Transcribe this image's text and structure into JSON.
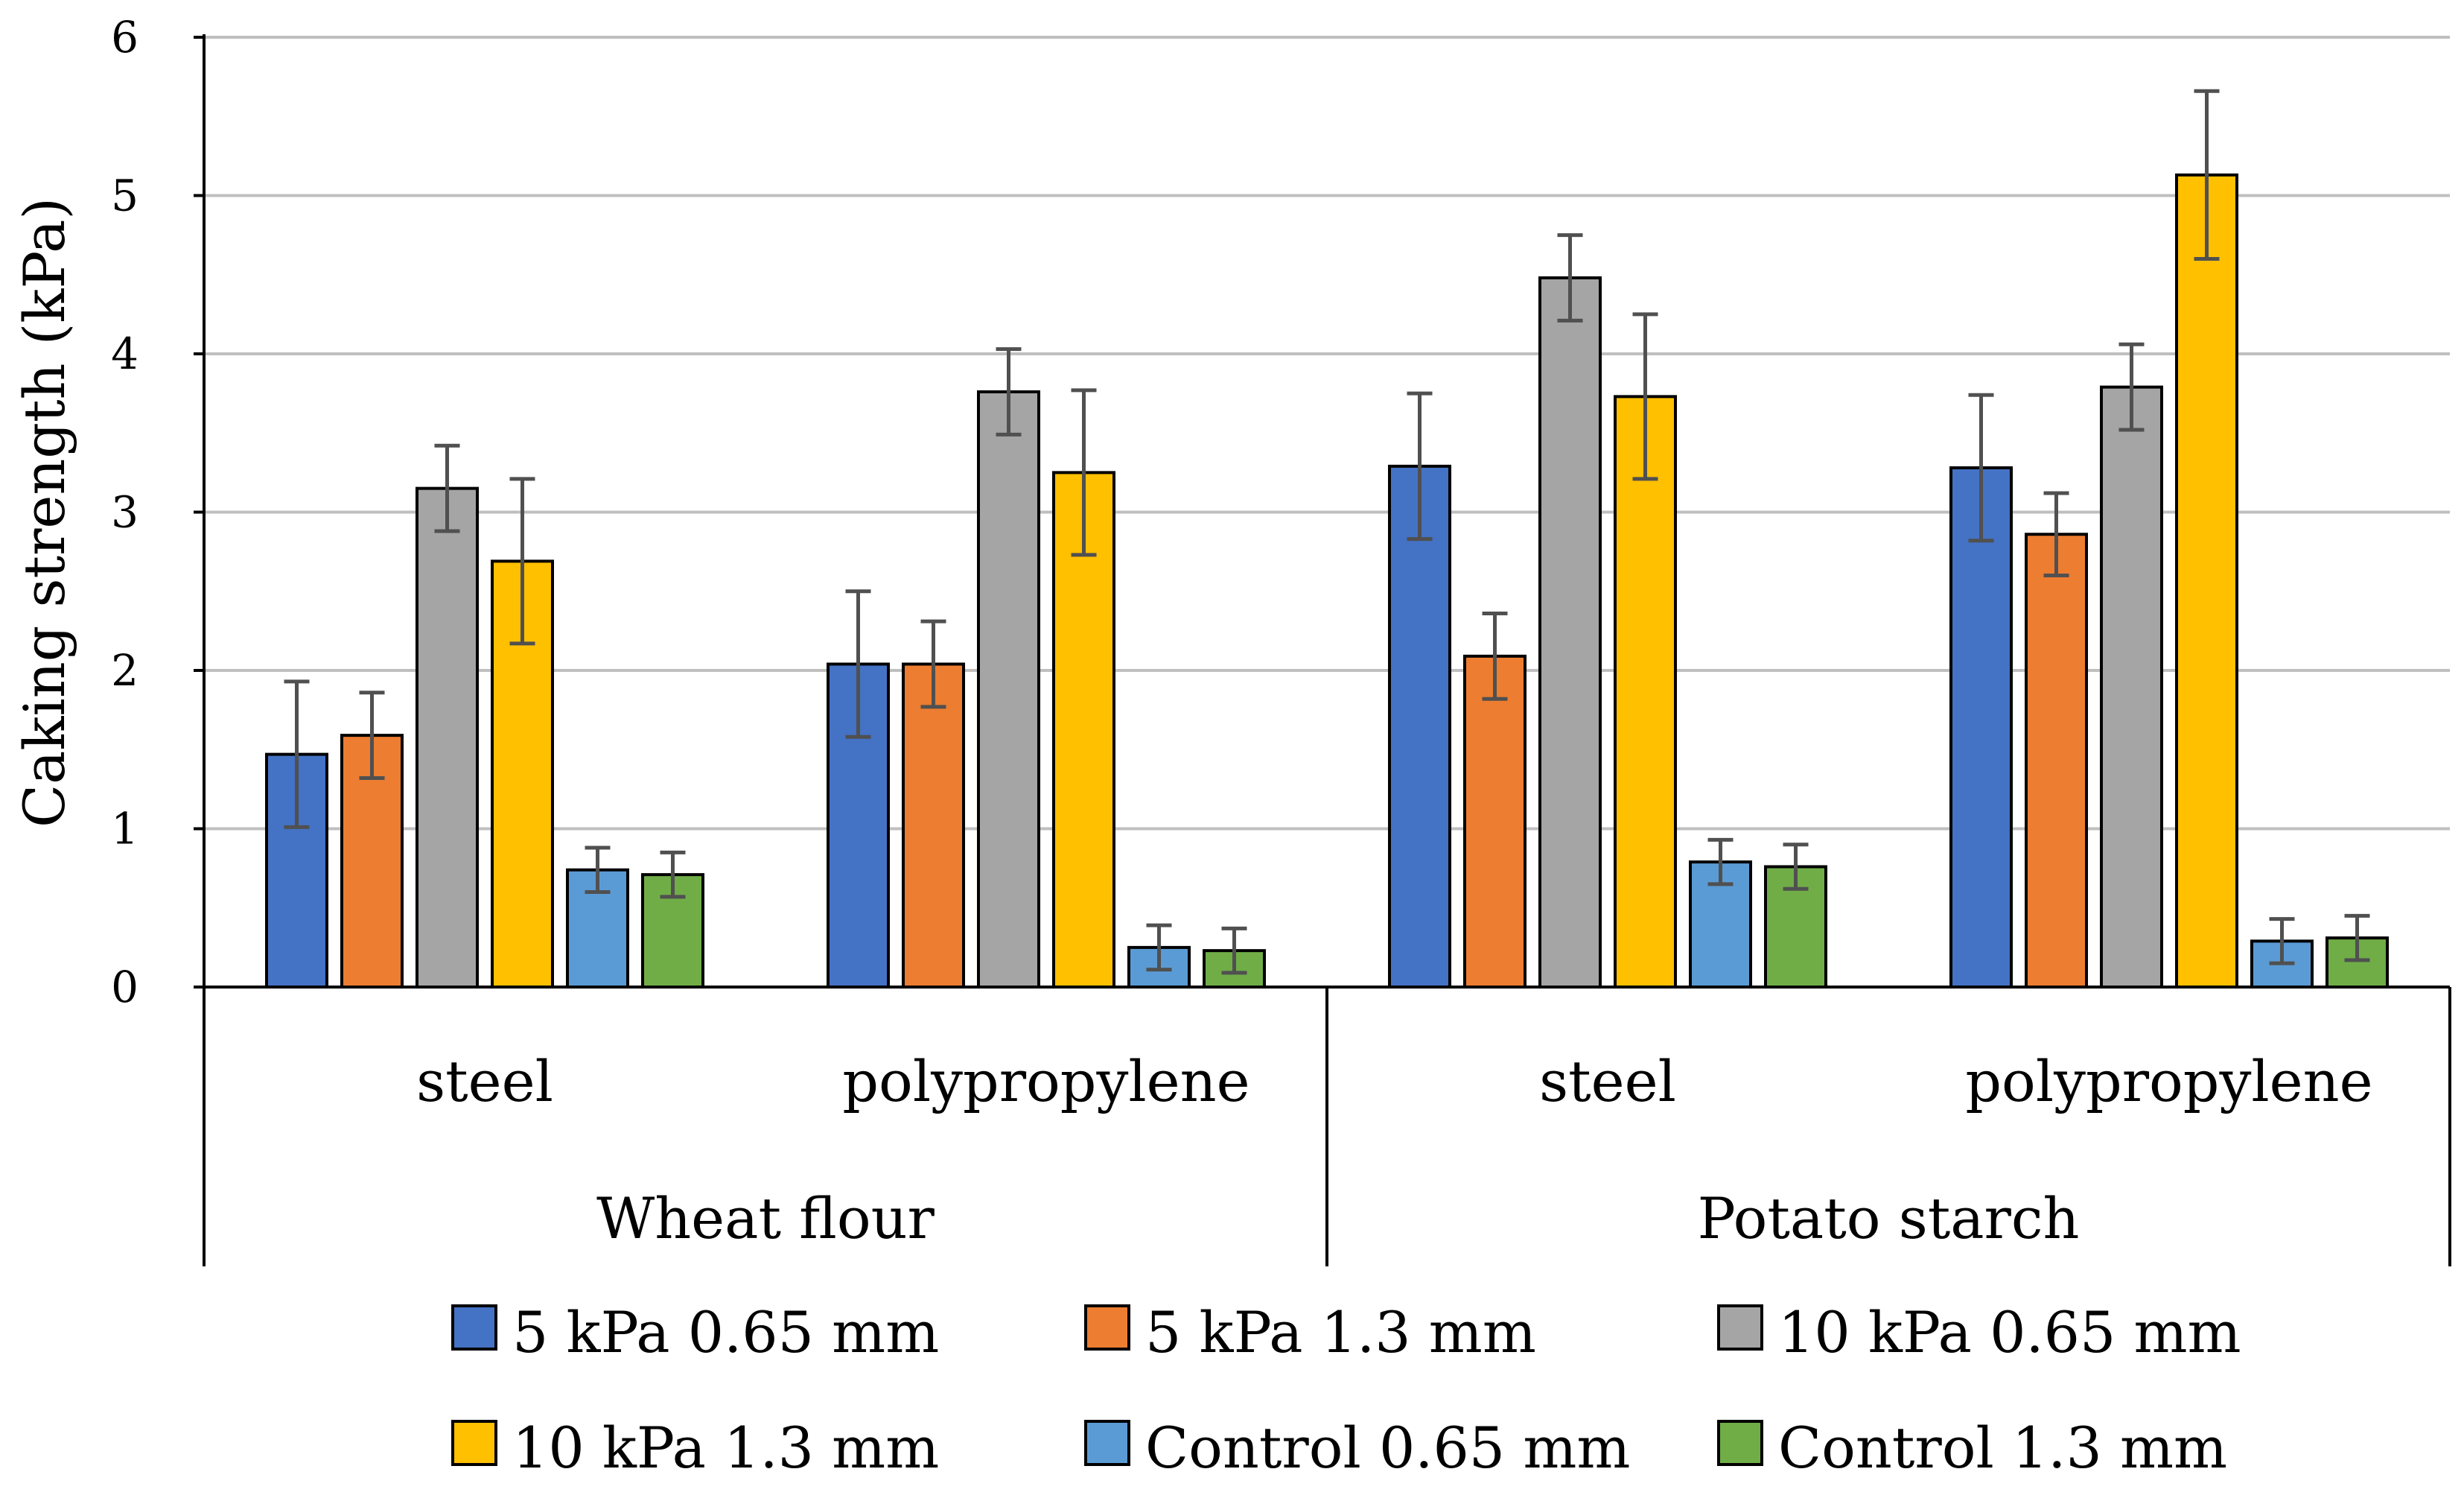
{
  "chart_data": {
    "type": "bar",
    "title": "",
    "xlabel": "",
    "ylabel": "Caking strength (kPa)",
    "ylim": [
      0,
      6
    ],
    "yticks": [
      "0",
      "1",
      "2",
      "3",
      "4",
      "5",
      "6"
    ],
    "grid": true,
    "legend_position": "bottom",
    "groups": [
      {
        "name": "Wheat flour",
        "subcategories": [
          "steel",
          "polypropylene"
        ]
      },
      {
        "name": "Potato starch",
        "subcategories": [
          "steel",
          "polypropylene"
        ]
      }
    ],
    "categories": [
      "steel",
      "polypropylene",
      "steel",
      "polypropylene"
    ],
    "series": [
      {
        "name": "5 kPa 0.65 mm",
        "color": "#4472C4",
        "values": [
          1.47,
          2.04,
          3.29,
          3.28
        ],
        "errors": [
          0.46,
          0.46,
          0.46,
          0.46
        ]
      },
      {
        "name": "5 kPa 1.3 mm",
        "color": "#ED7D31",
        "values": [
          1.59,
          2.04,
          2.09,
          2.86
        ],
        "errors": [
          0.27,
          0.27,
          0.27,
          0.26
        ]
      },
      {
        "name": "10 kPa 0.65 mm",
        "color": "#A5A5A5",
        "values": [
          3.15,
          3.76,
          4.48,
          3.79
        ],
        "errors": [
          0.27,
          0.27,
          0.27,
          0.27
        ]
      },
      {
        "name": "10 kPa 1.3 mm",
        "color": "#FFC000",
        "values": [
          2.69,
          3.25,
          3.73,
          5.13
        ],
        "errors": [
          0.52,
          0.52,
          0.52,
          0.53
        ]
      },
      {
        "name": "Control 0.65 mm",
        "color": "#5B9BD5",
        "values": [
          0.74,
          0.25,
          0.79,
          0.29
        ],
        "errors": [
          0.14,
          0.14,
          0.14,
          0.14
        ]
      },
      {
        "name": "Control 1.3 mm",
        "color": "#70AD47",
        "values": [
          0.71,
          0.23,
          0.76,
          0.31
        ],
        "errors": [
          0.14,
          0.14,
          0.14,
          0.14
        ]
      }
    ]
  }
}
